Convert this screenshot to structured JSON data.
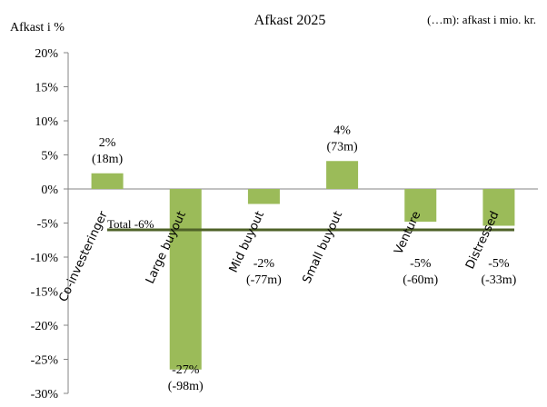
{
  "chart_data": {
    "type": "bar",
    "title": "Afkast 2025",
    "ylabel": "Afkast i %",
    "note": "(…m): afkast i mio. kr.",
    "ylim": [
      -30,
      20
    ],
    "yticks": [
      "20%",
      "15%",
      "10%",
      "5%",
      "0%",
      "-5%",
      "-10%",
      "-15%",
      "-20%",
      "-25%",
      "-30%"
    ],
    "ytick_values": [
      20,
      15,
      10,
      5,
      0,
      -5,
      -10,
      -15,
      -20,
      -25,
      -30
    ],
    "grid": false,
    "categories": [
      "Co-investeringer",
      "Large buyout",
      "Mid buyout",
      "Small buyout",
      "Venture",
      "Distressed"
    ],
    "values": [
      2.3,
      -26.5,
      -2.2,
      4.1,
      -4.8,
      -5.4
    ],
    "value_labels": [
      "2%",
      "-27%",
      "-2%",
      "4%",
      "-5%",
      "-5%"
    ],
    "amount_labels": [
      "(18m)",
      "(-98m)",
      "(-77m)",
      "(73m)",
      "(-60m)",
      "(-33m)"
    ],
    "bar_color": "#9bbb59",
    "total": {
      "label": "Total -6%",
      "value": -6,
      "color": "#4f6228"
    }
  }
}
